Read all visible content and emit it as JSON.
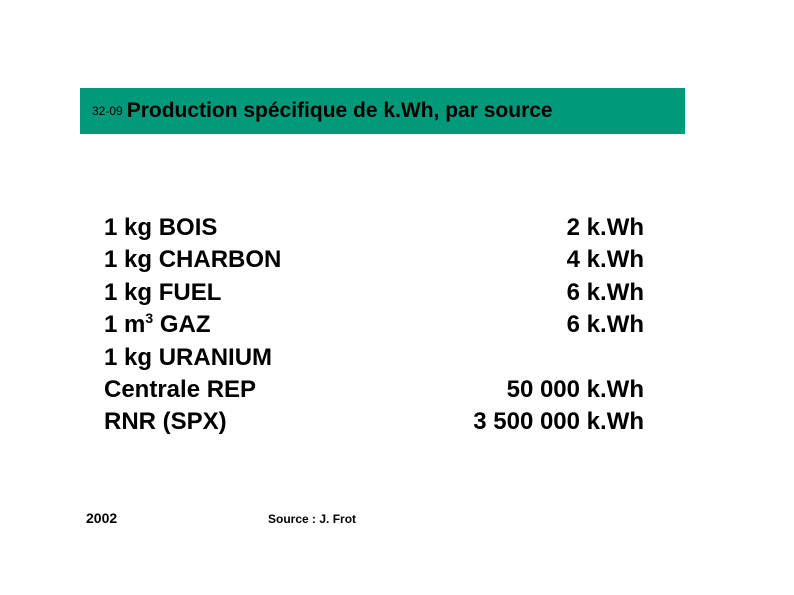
{
  "title": {
    "code": "32-09",
    "text": "Production spécifique de k.Wh, par source"
  },
  "colors": {
    "title_bar_bg": "#009a7b",
    "title_text": "#000000",
    "body_text": "#000000",
    "page_bg": "#ffffff"
  },
  "typography": {
    "title_fontsize": 21,
    "code_fontsize": 12,
    "body_fontsize": 24,
    "footer_fontsize": 14,
    "citation_fontsize": 12,
    "font_family": "Arial"
  },
  "rows": [
    {
      "label_pre": "1 kg ",
      "label_main": "BOIS",
      "sup": "",
      "label_post": "",
      "value": "2 k.Wh"
    },
    {
      "label_pre": "1 kg ",
      "label_main": "CHARBON",
      "sup": "",
      "label_post": "",
      "value": "4 k.Wh"
    },
    {
      "label_pre": "1 kg ",
      "label_main": "FUEL",
      "sup": "",
      "label_post": "",
      "value": "6 k.Wh"
    },
    {
      "label_pre": "1 m",
      "label_main": " GAZ",
      "sup": "3",
      "label_post": "",
      "value": "6 k.Wh"
    },
    {
      "label_pre": "1 kg ",
      "label_main": "URANIUM",
      "sup": "",
      "label_post": "",
      "value": ""
    },
    {
      "label_pre": "",
      "label_main": "Centrale REP",
      "sup": "",
      "label_post": "",
      "value": "50 000 k.Wh"
    },
    {
      "label_pre": "",
      "label_main": "RNR (SPX)",
      "sup": "",
      "label_post": "",
      "value": "3 500 000 k.Wh"
    }
  ],
  "footer": {
    "year": "2002",
    "citation": "Source : J. Frot"
  }
}
